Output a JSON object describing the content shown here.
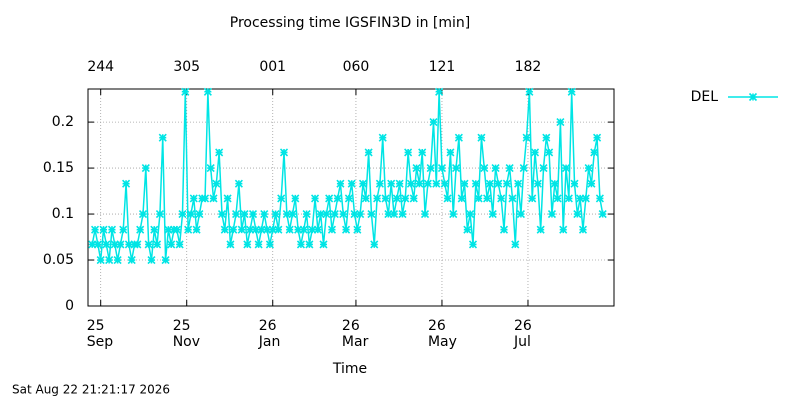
{
  "chart_data": {
    "type": "line",
    "title": "Processing time IGSFIN3D in [min]",
    "xlabel": "Time",
    "footer": "Sat Aug 22 21:21:17 2026",
    "series": [
      {
        "name": "DEL",
        "color": "#00e5e5",
        "x": [
          -6,
          -4,
          -2,
          0,
          2,
          4,
          6,
          8,
          10,
          12,
          14,
          16,
          18,
          20,
          22,
          24,
          26,
          28,
          30,
          32,
          34,
          36,
          38,
          40,
          42,
          44,
          46,
          48,
          50,
          52,
          54,
          56,
          58,
          60,
          62,
          64,
          66,
          68,
          70,
          72,
          74,
          76,
          78,
          80,
          82,
          84,
          86,
          88,
          90,
          92,
          94,
          96,
          98,
          100,
          102,
          104,
          106,
          108,
          110,
          112,
          114,
          116,
          118,
          120,
          122,
          124,
          126,
          128,
          130,
          132,
          134,
          136,
          138,
          140,
          142,
          144,
          146,
          148,
          150,
          152,
          154,
          156,
          158,
          160,
          162,
          164,
          166,
          168,
          170,
          172,
          174,
          176,
          178,
          180,
          182,
          184,
          186,
          188,
          190,
          192,
          194,
          196,
          198,
          200,
          202,
          204,
          206,
          208,
          210,
          212,
          214,
          216,
          218,
          220,
          222,
          224,
          226,
          228,
          230,
          232,
          234,
          236,
          238,
          240,
          242,
          244,
          246,
          248,
          250,
          252,
          254,
          256,
          258,
          260,
          262,
          264,
          266,
          268,
          270,
          272,
          274,
          276,
          278,
          280,
          282,
          284,
          286,
          288,
          290,
          292,
          294,
          296,
          298,
          300,
          302,
          304,
          306,
          308,
          310,
          312,
          314,
          316,
          318,
          320,
          322,
          324,
          326,
          328,
          330,
          332,
          334,
          336,
          338,
          340,
          342,
          344,
          346,
          348,
          350,
          352,
          354,
          356
        ],
        "values": [
          0.067,
          0.083,
          0.067,
          0.05,
          0.083,
          0.067,
          0.05,
          0.083,
          0.067,
          0.05,
          0.067,
          0.083,
          0.133,
          0.067,
          0.05,
          0.067,
          0.067,
          0.083,
          0.1,
          0.15,
          0.067,
          0.05,
          0.083,
          0.067,
          0.1,
          0.183,
          0.05,
          0.083,
          0.067,
          0.083,
          0.083,
          0.067,
          0.1,
          0.233,
          0.083,
          0.1,
          0.117,
          0.083,
          0.1,
          0.117,
          0.117,
          0.233,
          0.15,
          0.117,
          0.133,
          0.167,
          0.1,
          0.083,
          0.117,
          0.067,
          0.083,
          0.1,
          0.133,
          0.083,
          0.1,
          0.067,
          0.083,
          0.1,
          0.083,
          0.067,
          0.083,
          0.1,
          0.083,
          0.067,
          0.083,
          0.1,
          0.083,
          0.117,
          0.167,
          0.1,
          0.083,
          0.1,
          0.117,
          0.083,
          0.067,
          0.083,
          0.1,
          0.067,
          0.083,
          0.117,
          0.083,
          0.1,
          0.067,
          0.1,
          0.117,
          0.083,
          0.1,
          0.117,
          0.133,
          0.1,
          0.083,
          0.117,
          0.133,
          0.1,
          0.083,
          0.1,
          0.133,
          0.117,
          0.167,
          0.1,
          0.067,
          0.117,
          0.133,
          0.183,
          0.117,
          0.1,
          0.133,
          0.1,
          0.117,
          0.133,
          0.1,
          0.117,
          0.167,
          0.133,
          0.117,
          0.15,
          0.133,
          0.167,
          0.1,
          0.133,
          0.15,
          0.2,
          0.133,
          0.233,
          0.15,
          0.133,
          0.117,
          0.167,
          0.1,
          0.15,
          0.183,
          0.117,
          0.133,
          0.083,
          0.1,
          0.067,
          0.133,
          0.117,
          0.183,
          0.15,
          0.117,
          0.133,
          0.1,
          0.15,
          0.133,
          0.117,
          0.083,
          0.133,
          0.15,
          0.117,
          0.067,
          0.133,
          0.1,
          0.15,
          0.183,
          0.233,
          0.117,
          0.167,
          0.133,
          0.083,
          0.15,
          0.183,
          0.167,
          0.1,
          0.133,
          0.117,
          0.2,
          0.083,
          0.15,
          0.117,
          0.233,
          0.133,
          0.1,
          0.117,
          0.083,
          0.117,
          0.15,
          0.133,
          0.167,
          0.183,
          0.117,
          0.1
        ]
      }
    ],
    "xlim": [
      -9,
      364
    ],
    "xticks": [
      {
        "value": 0,
        "label": "25\nSep"
      },
      {
        "value": 61,
        "label": "25\nNov"
      },
      {
        "value": 122,
        "label": "26\nJan"
      },
      {
        "value": 181,
        "label": "26\nMar"
      },
      {
        "value": 242,
        "label": "26\nMay"
      },
      {
        "value": 303,
        "label": "26\nJul"
      }
    ],
    "x2ticks": [
      {
        "value": 0,
        "label": "244"
      },
      {
        "value": 61,
        "label": "305"
      },
      {
        "value": 122,
        "label": "001"
      },
      {
        "value": 181,
        "label": "060"
      },
      {
        "value": 242,
        "label": "121"
      },
      {
        "value": 303,
        "label": "182"
      }
    ],
    "ylim": [
      0,
      0.236
    ],
    "yticks": [
      0,
      0.05,
      0.1,
      0.15,
      0.2
    ],
    "grid": true,
    "legend": "outside-right"
  }
}
